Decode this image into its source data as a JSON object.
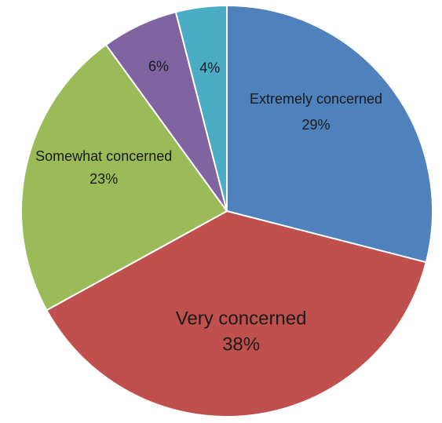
{
  "chart_data": {
    "type": "pie",
    "title": "",
    "slices": [
      {
        "label": "Extremely concerned",
        "value": 29,
        "value_label": "29%",
        "color": "#4F81BD"
      },
      {
        "label": "Very concerned",
        "value": 38,
        "value_label": "38%",
        "color": "#C0504D"
      },
      {
        "label": "Somewhat concerned",
        "value": 23,
        "value_label": "23%",
        "color": "#9BBB59"
      },
      {
        "label": "",
        "value": 6,
        "value_label": "6%",
        "color": "#8064A2"
      },
      {
        "label": "",
        "value": 4,
        "value_label": "4%",
        "color": "#4BACC6"
      }
    ],
    "start_angle_deg": 0,
    "direction": "clockwise",
    "legend": "none"
  }
}
